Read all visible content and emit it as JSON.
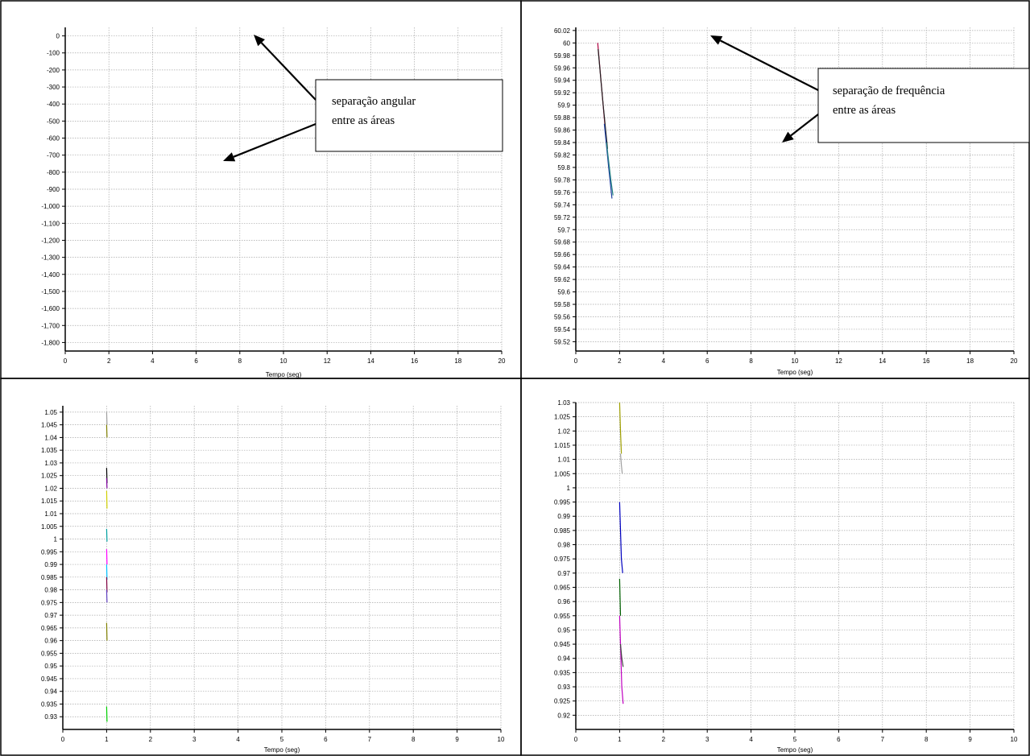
{
  "chart_data": [
    {
      "type": "line",
      "xlabel": "Tempo (seg)",
      "xlim": [
        0,
        20
      ],
      "ylim": [
        -1850,
        50
      ],
      "xticks": [
        0,
        2,
        4,
        6,
        8,
        10,
        12,
        14,
        16,
        18,
        20
      ],
      "yticks": [
        0,
        -100,
        -200,
        -300,
        -400,
        -500,
        -600,
        -700,
        -800,
        -900,
        -1000,
        -1100,
        -1200,
        -1300,
        -1400,
        -1500,
        -1600,
        -1700,
        -1800
      ],
      "ytick_labels": [
        "0",
        "-100",
        "-200",
        "-300",
        "-400",
        "-500",
        "-600",
        "-700",
        "-800",
        "-900",
        "-1,000",
        "-1,100",
        "-1,200",
        "-1,300",
        "-1,400",
        "-1,500",
        "-1,600",
        "-1,700",
        "-1,800"
      ],
      "grid": true,
      "series": [],
      "annotations": [
        {
          "text_lines": [
            "separação angular",
            "entre as áreas"
          ]
        }
      ]
    },
    {
      "type": "line",
      "xlabel": "Tempo (seg)",
      "xlim": [
        0,
        20
      ],
      "ylim": [
        59.505,
        60.025
      ],
      "xticks": [
        0,
        2,
        4,
        6,
        8,
        10,
        12,
        14,
        16,
        18,
        20
      ],
      "yticks": [
        60.02,
        60,
        59.98,
        59.96,
        59.94,
        59.92,
        59.9,
        59.88,
        59.86,
        59.84,
        59.82,
        59.8,
        59.78,
        59.76,
        59.74,
        59.72,
        59.7,
        59.68,
        59.66,
        59.64,
        59.62,
        59.6,
        59.58,
        59.56,
        59.54,
        59.52
      ],
      "ytick_labels": [
        "60.02",
        "60",
        "59.98",
        "59.96",
        "59.94",
        "59.92",
        "59.9",
        "59.88",
        "59.86",
        "59.84",
        "59.82",
        "59.8",
        "59.78",
        "59.76",
        "59.74",
        "59.72",
        "59.7",
        "59.68",
        "59.66",
        "59.64",
        "59.62",
        "59.6",
        "59.58",
        "59.56",
        "59.54",
        "59.52"
      ],
      "grid": true,
      "series": [
        {
          "color": "#b00040",
          "x": [
            1.0,
            1.2,
            1.35
          ],
          "y": [
            60.0,
            59.92,
            59.86
          ]
        },
        {
          "color": "#202020",
          "x": [
            1.02,
            1.25,
            1.45
          ],
          "y": [
            59.99,
            59.9,
            59.83
          ]
        },
        {
          "color": "#2040a0",
          "x": [
            1.3,
            1.5,
            1.65
          ],
          "y": [
            59.87,
            59.8,
            59.75
          ]
        },
        {
          "color": "#208080",
          "x": [
            1.4,
            1.6,
            1.7
          ],
          "y": [
            59.84,
            59.78,
            59.755
          ]
        }
      ],
      "annotations": [
        {
          "text_lines": [
            "separação de frequência",
            "entre as áreas"
          ]
        }
      ]
    },
    {
      "type": "line",
      "xlabel": "Tempo (seg)",
      "xlim": [
        0,
        10
      ],
      "ylim": [
        0.925,
        1.0525
      ],
      "xticks": [
        0,
        1,
        2,
        3,
        4,
        5,
        6,
        7,
        8,
        9,
        10
      ],
      "yticks": [
        1.05,
        1.045,
        1.04,
        1.035,
        1.03,
        1.025,
        1.02,
        1.015,
        1.01,
        1.005,
        1,
        0.995,
        0.99,
        0.985,
        0.98,
        0.975,
        0.97,
        0.965,
        0.96,
        0.955,
        0.95,
        0.945,
        0.94,
        0.935,
        0.93
      ],
      "ytick_labels": [
        "1.05",
        "1.045",
        "1.04",
        "1.035",
        "1.03",
        "1.025",
        "1.02",
        "1.015",
        "1.01",
        "1.005",
        "1",
        "0.995",
        "0.99",
        "0.985",
        "0.98",
        "0.975",
        "0.97",
        "0.965",
        "0.96",
        "0.955",
        "0.95",
        "0.945",
        "0.94",
        "0.935",
        "0.93"
      ],
      "grid": true,
      "series": [
        {
          "color": "#a0a0a0",
          "x": [
            1.0,
            1.01
          ],
          "y": [
            1.05,
            1.045
          ]
        },
        {
          "color": "#808000",
          "x": [
            1.0,
            1.01
          ],
          "y": [
            1.045,
            1.04
          ]
        },
        {
          "color": "#000000",
          "x": [
            1.0,
            1.01
          ],
          "y": [
            1.028,
            1.022
          ]
        },
        {
          "color": "#8000a0",
          "x": [
            1.0,
            1.01
          ],
          "y": [
            1.024,
            1.02
          ]
        },
        {
          "color": "#d0d000",
          "x": [
            1.0,
            1.01
          ],
          "y": [
            1.019,
            1.012
          ]
        },
        {
          "color": "#00a0a0",
          "x": [
            1.0,
            1.01
          ],
          "y": [
            1.004,
            0.999
          ]
        },
        {
          "color": "#ff00ff",
          "x": [
            1.0,
            1.01
          ],
          "y": [
            0.996,
            0.99
          ]
        },
        {
          "color": "#00c0ff",
          "x": [
            1.0,
            1.01
          ],
          "y": [
            0.99,
            0.984
          ]
        },
        {
          "color": "#800040",
          "x": [
            1.0,
            1.01
          ],
          "y": [
            0.985,
            0.979
          ]
        },
        {
          "color": "#6040c0",
          "x": [
            1.0,
            1.01
          ],
          "y": [
            0.98,
            0.975
          ]
        },
        {
          "color": "#808000",
          "x": [
            1.0,
            1.01
          ],
          "y": [
            0.967,
            0.96
          ]
        },
        {
          "color": "#00d000",
          "x": [
            1.0,
            1.01
          ],
          "y": [
            0.934,
            0.928
          ]
        }
      ]
    },
    {
      "type": "line",
      "xlabel": "Tempo (seg)",
      "xlim": [
        0,
        10
      ],
      "ylim": [
        0.915,
        1.03
      ],
      "xticks": [
        0,
        1,
        2,
        3,
        4,
        5,
        6,
        7,
        8,
        9,
        10
      ],
      "yticks": [
        1.03,
        1.025,
        1.02,
        1.015,
        1.01,
        1.005,
        1,
        0.995,
        0.99,
        0.985,
        0.98,
        0.975,
        0.97,
        0.965,
        0.96,
        0.955,
        0.95,
        0.945,
        0.94,
        0.935,
        0.93,
        0.925,
        0.92
      ],
      "ytick_labels": [
        "1.03",
        "1.025",
        "1.02",
        "1.015",
        "1.01",
        "1.005",
        "1",
        "0.995",
        "0.99",
        "0.985",
        "0.98",
        "0.975",
        "0.97",
        "0.965",
        "0.96",
        "0.955",
        "0.95",
        "0.945",
        "0.94",
        "0.935",
        "0.93",
        "0.925",
        "0.92"
      ],
      "grid": true,
      "series": [
        {
          "color": "#a0a000",
          "x": [
            1.0,
            1.02,
            1.04
          ],
          "y": [
            1.03,
            1.02,
            1.012
          ]
        },
        {
          "color": "#a0a0a0",
          "x": [
            1.02,
            1.04,
            1.06
          ],
          "y": [
            1.012,
            1.008,
            1.005
          ]
        },
        {
          "color": "#0000c0",
          "x": [
            1.0,
            1.02,
            1.04,
            1.07
          ],
          "y": [
            0.995,
            0.985,
            0.975,
            0.97
          ]
        },
        {
          "color": "#006000",
          "x": [
            1.0,
            1.02
          ],
          "y": [
            0.968,
            0.955
          ]
        },
        {
          "color": "#c000c0",
          "x": [
            1.0,
            1.02,
            1.05,
            1.08
          ],
          "y": [
            0.955,
            0.945,
            0.93,
            0.924
          ]
        },
        {
          "color": "#404040",
          "x": [
            1.02,
            1.05,
            1.08
          ],
          "y": [
            0.945,
            0.94,
            0.937
          ]
        }
      ]
    }
  ]
}
